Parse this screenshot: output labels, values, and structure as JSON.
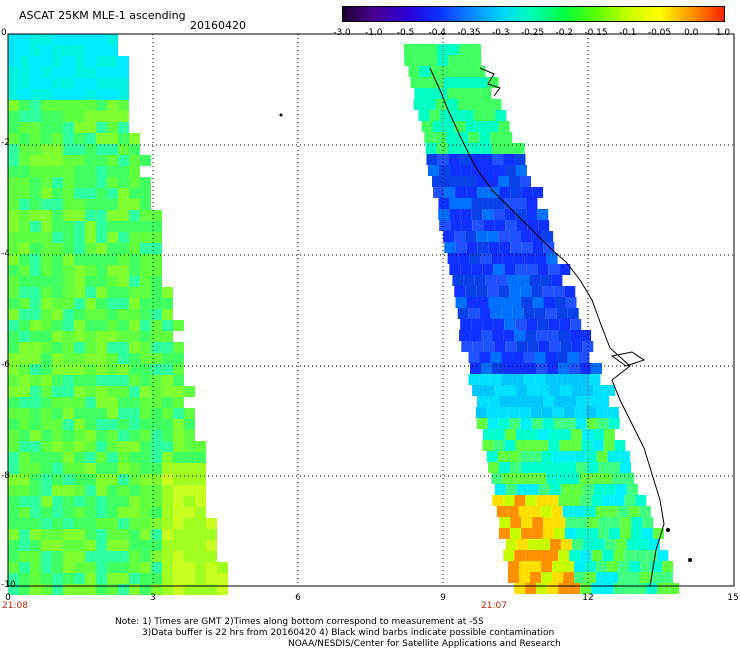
{
  "header": {
    "title": "ASCAT 25KM MLE-1 ascending",
    "date": "20160420"
  },
  "colorbar": {
    "labels": [
      "-3.0",
      "-1.0",
      "-0.5",
      "-0.4",
      "-0.35",
      "-0.3",
      "-0.25",
      "-0.2",
      "-0.15",
      "-0.1",
      "-0.05",
      "0.0",
      "1.0"
    ],
    "colors": [
      "#1a0030",
      "#4a0090",
      "#2b00d8",
      "#0a30ff",
      "#0a80ff",
      "#00d8ff",
      "#00ffb0",
      "#00ff40",
      "#60ff00",
      "#c8ff00",
      "#ffff00",
      "#ff9000",
      "#ff2000"
    ]
  },
  "axes": {
    "x_ticks": [
      "0",
      "3",
      "6",
      "9",
      "12",
      "15"
    ],
    "y_ticks": [
      "0",
      "-2",
      "-4",
      "-6",
      "-8",
      "-10"
    ],
    "swath_times": [
      "21:08",
      "21:07"
    ]
  },
  "notes": [
    "Note: 1) Times are GMT 2)Times along bottom correspond to measurement at -5S",
    "3)Data buffer is 22 hrs from 20160420 4) Black wind barbs indicate possible contamination",
    "NOAA/NESDIS/Center for Satellite Applications and Research"
  ]
}
